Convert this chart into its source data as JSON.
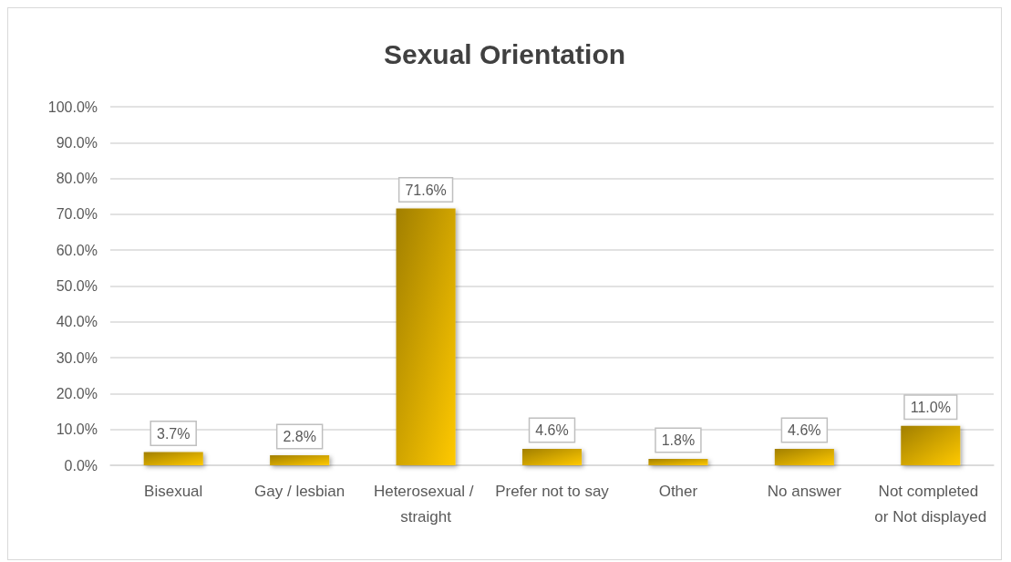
{
  "chart_data": {
    "type": "bar",
    "title": "Sexual Orientation",
    "categories": [
      "Bisexual",
      "Gay / lesbian",
      "Heterosexual / straight",
      "Prefer not to say",
      "Other",
      "No answer",
      "Not completed or Not displayed"
    ],
    "values": [
      3.7,
      2.8,
      71.6,
      4.6,
      1.8,
      4.6,
      11.0
    ],
    "value_labels": [
      "3.7%",
      "2.8%",
      "71.6%",
      "4.6%",
      "1.8%",
      "4.6%",
      "11.0%"
    ],
    "color": "#e0b000",
    "ylim": [
      0,
      100
    ],
    "yticks": [
      {
        "value": 0,
        "label": "0.0%"
      },
      {
        "value": 10,
        "label": "10.0%"
      },
      {
        "value": 20,
        "label": "20.0%"
      },
      {
        "value": 30,
        "label": "30.0%"
      },
      {
        "value": 40,
        "label": "40.0%"
      },
      {
        "value": 50,
        "label": "50.0%"
      },
      {
        "value": 60,
        "label": "60.0%"
      },
      {
        "value": 70,
        "label": "70.0%"
      },
      {
        "value": 80,
        "label": "80.0%"
      },
      {
        "value": 90,
        "label": "90.0%"
      },
      {
        "value": 100,
        "label": "100.0%"
      }
    ],
    "grid": "y"
  }
}
